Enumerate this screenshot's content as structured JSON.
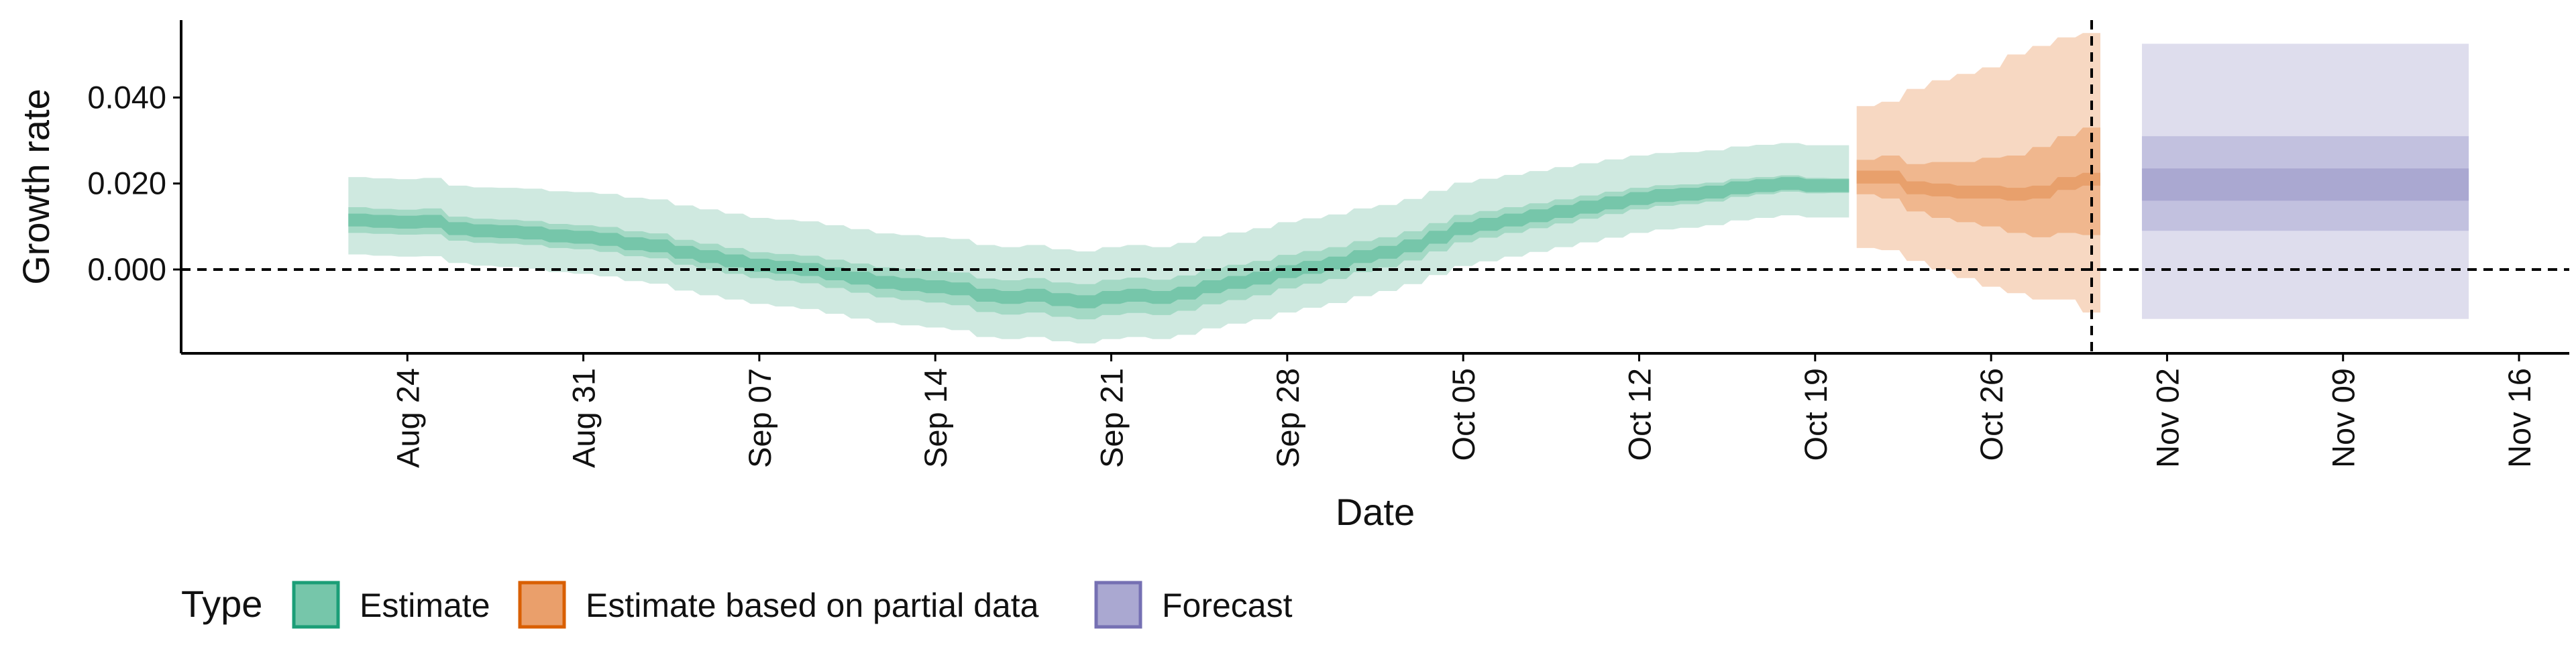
{
  "chart_data": {
    "type": "area",
    "title": "",
    "xlabel": "Date",
    "ylabel": "Growth rate",
    "x_axis": {
      "type": "date",
      "range": [
        "2020-08-15",
        "2020-11-18"
      ],
      "ticks": [
        {
          "date": "2020-08-24",
          "label": "Aug 24"
        },
        {
          "date": "2020-08-31",
          "label": "Aug 31"
        },
        {
          "date": "2020-09-07",
          "label": "Sep 07"
        },
        {
          "date": "2020-09-14",
          "label": "Sep 14"
        },
        {
          "date": "2020-09-21",
          "label": "Sep 21"
        },
        {
          "date": "2020-09-28",
          "label": "Sep 28"
        },
        {
          "date": "2020-10-05",
          "label": "Oct 05"
        },
        {
          "date": "2020-10-12",
          "label": "Oct 12"
        },
        {
          "date": "2020-10-19",
          "label": "Oct 19"
        },
        {
          "date": "2020-10-26",
          "label": "Oct 26"
        },
        {
          "date": "2020-11-02",
          "label": "Nov 02"
        },
        {
          "date": "2020-11-09",
          "label": "Nov 09"
        },
        {
          "date": "2020-11-16",
          "label": "Nov 16"
        }
      ]
    },
    "y_axis": {
      "range": [
        -0.0195,
        0.058
      ],
      "ticks": [
        {
          "value": 0.0,
          "label": "0.000"
        },
        {
          "value": 0.02,
          "label": "0.020"
        },
        {
          "value": 0.04,
          "label": "0.040"
        }
      ]
    },
    "reference_lines": {
      "horizontal_y": 0.0,
      "vertical_date": "2020-10-30"
    },
    "grid": false,
    "legend": {
      "title": "Type",
      "position": "bottom-left",
      "items": [
        {
          "label": "Estimate",
          "fill": "#76c6aa",
          "border": "#1b9e77"
        },
        {
          "label": "Estimate based on partial data",
          "fill": "#ea9f6b",
          "border": "#d95f02"
        },
        {
          "label": "Forecast",
          "fill": "#aaa8d1",
          "border": "#7570b3"
        }
      ]
    },
    "colors": {
      "Estimate": {
        "outer": "#cfe9e0",
        "inner": "#a4d9c5",
        "median": "#76c6aa"
      },
      "Estimate based on partial data": {
        "outer": "#f7d8c2",
        "inner": "#f0b78e",
        "median": "#e8a06c"
      },
      "Forecast": {
        "outer": "#dedded",
        "inner": "#c2c1df",
        "median": "#aaa8d1"
      }
    },
    "series": [
      {
        "type_name": "Estimate",
        "x": [
          "2020-08-22",
          "2020-08-23",
          "2020-08-24",
          "2020-08-25",
          "2020-08-26",
          "2020-08-27",
          "2020-08-28",
          "2020-08-29",
          "2020-08-30",
          "2020-08-31",
          "2020-09-01",
          "2020-09-02",
          "2020-09-03",
          "2020-09-04",
          "2020-09-05",
          "2020-09-06",
          "2020-09-07",
          "2020-09-08",
          "2020-09-09",
          "2020-09-10",
          "2020-09-11",
          "2020-09-12",
          "2020-09-13",
          "2020-09-14",
          "2020-09-15",
          "2020-09-16",
          "2020-09-17",
          "2020-09-18",
          "2020-09-19",
          "2020-09-20",
          "2020-09-21",
          "2020-09-22",
          "2020-09-23",
          "2020-09-24",
          "2020-09-25",
          "2020-09-26",
          "2020-09-27",
          "2020-09-28",
          "2020-09-29",
          "2020-09-30",
          "2020-10-01",
          "2020-10-02",
          "2020-10-03",
          "2020-10-04",
          "2020-10-05",
          "2020-10-06",
          "2020-10-07",
          "2020-10-08",
          "2020-10-09",
          "2020-10-10",
          "2020-10-11",
          "2020-10-12",
          "2020-10-13",
          "2020-10-14",
          "2020-10-15",
          "2020-10-16",
          "2020-10-17",
          "2020-10-18",
          "2020-10-19",
          "2020-10-20"
        ],
        "median": [
          0.0115,
          0.0112,
          0.011,
          0.0112,
          0.0095,
          0.009,
          0.0088,
          0.0085,
          0.0078,
          0.0075,
          0.007,
          0.006,
          0.0055,
          0.004,
          0.003,
          0.002,
          0.001,
          0.0005,
          0.0,
          -0.001,
          -0.002,
          -0.003,
          -0.0035,
          -0.004,
          -0.0045,
          -0.006,
          -0.0065,
          -0.006,
          -0.007,
          -0.0075,
          -0.0065,
          -0.006,
          -0.0065,
          -0.0055,
          -0.004,
          -0.003,
          -0.002,
          -0.0005,
          0.0005,
          0.0015,
          0.003,
          0.004,
          0.0055,
          0.0075,
          0.0095,
          0.0105,
          0.0115,
          0.0125,
          0.0135,
          0.0145,
          0.0155,
          0.0165,
          0.0172,
          0.0175,
          0.018,
          0.019,
          0.0195,
          0.02,
          0.0195,
          0.0195
        ],
        "inner_low": [
          0.0085,
          0.0083,
          0.0081,
          0.0082,
          0.0067,
          0.0062,
          0.006,
          0.0057,
          0.005,
          0.0047,
          0.0041,
          0.0031,
          0.0026,
          0.0011,
          0.0,
          -0.001,
          -0.002,
          -0.0026,
          -0.0032,
          -0.0043,
          -0.0054,
          -0.0065,
          -0.0071,
          -0.0077,
          -0.0083,
          -0.0099,
          -0.0105,
          -0.01,
          -0.011,
          -0.0116,
          -0.0106,
          -0.0101,
          -0.0106,
          -0.0096,
          -0.0081,
          -0.0071,
          -0.006,
          -0.0044,
          -0.0033,
          -0.0022,
          -0.0006,
          0.0005,
          0.0021,
          0.0042,
          0.0063,
          0.0074,
          0.0085,
          0.0096,
          0.0107,
          0.0118,
          0.0129,
          0.014,
          0.0148,
          0.0152,
          0.0158,
          0.0169,
          0.0175,
          0.0181,
          0.0177,
          0.0178
        ],
        "inner_high": [
          0.0145,
          0.0141,
          0.0139,
          0.0142,
          0.0123,
          0.0118,
          0.0116,
          0.0113,
          0.0106,
          0.0103,
          0.0099,
          0.0089,
          0.0084,
          0.0069,
          0.006,
          0.005,
          0.004,
          0.0036,
          0.0032,
          0.0023,
          0.0014,
          0.0005,
          0.0001,
          -0.0003,
          -0.0007,
          -0.0021,
          -0.0025,
          -0.002,
          -0.003,
          -0.0034,
          -0.0024,
          -0.0019,
          -0.0024,
          -0.0014,
          0.0001,
          0.0011,
          0.002,
          0.0034,
          0.0043,
          0.0052,
          0.0066,
          0.0075,
          0.0089,
          0.0108,
          0.0127,
          0.0136,
          0.0145,
          0.0154,
          0.0163,
          0.0172,
          0.0181,
          0.019,
          0.0196,
          0.0198,
          0.0202,
          0.0211,
          0.0215,
          0.0219,
          0.0213,
          0.0212
        ],
        "outer_low": [
          0.0035,
          0.0032,
          0.003,
          0.0031,
          0.0015,
          0.0009,
          0.0006,
          0.0002,
          -0.0006,
          -0.001,
          -0.0016,
          -0.0027,
          -0.0033,
          -0.0049,
          -0.006,
          -0.007,
          -0.008,
          -0.0086,
          -0.0092,
          -0.0103,
          -0.0114,
          -0.0124,
          -0.013,
          -0.0135,
          -0.0141,
          -0.0157,
          -0.0162,
          -0.0157,
          -0.0167,
          -0.0172,
          -0.0162,
          -0.0157,
          -0.0162,
          -0.0152,
          -0.0137,
          -0.0126,
          -0.0116,
          -0.01,
          -0.0089,
          -0.0078,
          -0.0062,
          -0.005,
          -0.0034,
          -0.0013,
          0.0008,
          0.0019,
          0.003,
          0.0041,
          0.0052,
          0.0063,
          0.0074,
          0.0085,
          0.0093,
          0.0097,
          0.0103,
          0.0114,
          0.012,
          0.0126,
          0.0121,
          0.0121
        ],
        "outer_high": [
          0.0215,
          0.0212,
          0.021,
          0.0213,
          0.0195,
          0.0191,
          0.019,
          0.0188,
          0.0182,
          0.018,
          0.0176,
          0.0167,
          0.0163,
          0.0149,
          0.014,
          0.013,
          0.012,
          0.0116,
          0.0112,
          0.0103,
          0.0094,
          0.0084,
          0.008,
          0.0075,
          0.0071,
          0.0057,
          0.0052,
          0.0057,
          0.0047,
          0.0042,
          0.0052,
          0.0057,
          0.0052,
          0.0062,
          0.0077,
          0.0086,
          0.0096,
          0.011,
          0.0119,
          0.0128,
          0.0142,
          0.015,
          0.0164,
          0.0183,
          0.0202,
          0.0211,
          0.022,
          0.0229,
          0.0238,
          0.0247,
          0.0256,
          0.0265,
          0.0271,
          0.0273,
          0.0277,
          0.0286,
          0.029,
          0.0294,
          0.0289,
          0.0289
        ]
      },
      {
        "type_name": "Estimate based on partial data",
        "x": [
          "2020-10-21",
          "2020-10-22",
          "2020-10-23",
          "2020-10-24",
          "2020-10-25",
          "2020-10-26",
          "2020-10-27",
          "2020-10-28",
          "2020-10-29",
          "2020-10-30"
        ],
        "median": [
          0.0215,
          0.0215,
          0.019,
          0.0185,
          0.018,
          0.018,
          0.0175,
          0.018,
          0.02,
          0.021
        ],
        "inner_low": [
          0.0175,
          0.0165,
          0.0135,
          0.012,
          0.011,
          0.01,
          0.0085,
          0.0075,
          0.0085,
          0.008
        ],
        "inner_high": [
          0.0255,
          0.0265,
          0.0245,
          0.025,
          0.025,
          0.026,
          0.0265,
          0.0285,
          0.031,
          0.033
        ],
        "outer_low": [
          0.005,
          0.0045,
          0.002,
          0.0,
          -0.002,
          -0.004,
          -0.0055,
          -0.007,
          -0.007,
          -0.01
        ],
        "outer_high": [
          0.038,
          0.039,
          0.042,
          0.044,
          0.0455,
          0.047,
          0.05,
          0.052,
          0.054,
          0.055
        ]
      },
      {
        "type_name": "Forecast",
        "x": [
          "2020-11-01",
          "2020-11-14"
        ],
        "median": [
          0.02,
          0.02
        ],
        "inner_low": [
          0.016,
          0.016
        ],
        "inner_high": [
          0.0235,
          0.0235
        ],
        "outer_low": [
          0.009,
          0.009
        ],
        "outer_high": [
          0.031,
          0.031
        ],
        "outermost_low": [
          -0.0115,
          -0.0115
        ],
        "outermost_high": [
          0.0525,
          0.0525
        ]
      }
    ]
  }
}
